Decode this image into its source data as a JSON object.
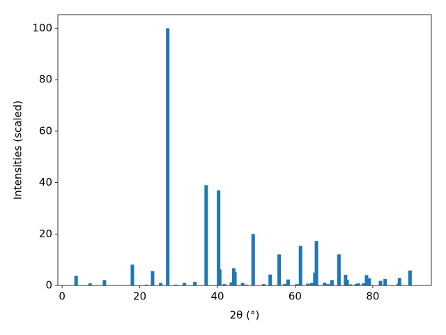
{
  "chart_data": {
    "type": "bar",
    "x_label": "2θ (°)",
    "y_label": "Intensities (scaled)",
    "color": "#1f77b4",
    "x": [
      3.6,
      7.2,
      10.9,
      18.1,
      21.7,
      23.3,
      25.4,
      27.2,
      29.3,
      31.5,
      34.2,
      37.1,
      40.3,
      40.6,
      41.8,
      43.6,
      44.2,
      44.5,
      46.5,
      47.5,
      49.2,
      51.9,
      53.6,
      55.9,
      57.3,
      58.2,
      60.5,
      61.4,
      63.3,
      64.3,
      65.1,
      65.5,
      67.6,
      68.5,
      69.5,
      71.3,
      73.0,
      73.4,
      74.3,
      75.8,
      76.3,
      77.6,
      78.4,
      79.1,
      82.0,
      83.2,
      86.6,
      86.9,
      89.6
    ],
    "values": [
      3.8,
      0.8,
      2.1,
      8.1,
      0.3,
      5.6,
      1.0,
      100,
      0.3,
      1.0,
      1.4,
      39,
      37,
      6.3,
      0.5,
      1.2,
      6.7,
      5.2,
      1.0,
      0.3,
      20,
      0.5,
      4.2,
      12.1,
      0.5,
      2.3,
      0.5,
      15.4,
      0.7,
      1.0,
      5.0,
      17.3,
      1.1,
      0.5,
      2.1,
      12.1,
      4.1,
      2.2,
      0.4,
      0.6,
      0.8,
      0.8,
      4.0,
      2.8,
      1.8,
      2.5,
      0.7,
      2.9,
      5.8
    ],
    "xlim": [
      -1.1,
      95.1
    ],
    "ylim": [
      0,
      105.3
    ],
    "xticks": [
      0,
      20,
      40,
      60,
      80
    ],
    "yticks": [
      0,
      20,
      40,
      60,
      80,
      100
    ]
  }
}
